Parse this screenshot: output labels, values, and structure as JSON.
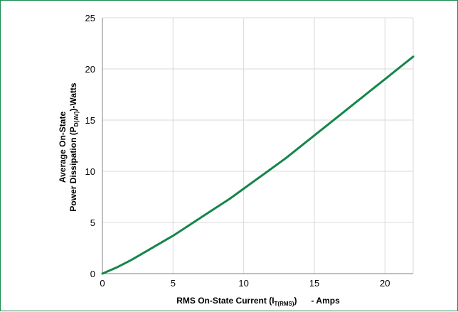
{
  "chart_data": {
    "type": "line",
    "title": "",
    "xlabel": {
      "main": "RMS On-State Current (I",
      "subscript": "T(RMS)",
      "suffix": ")      - Amps"
    },
    "ylabel": {
      "line1": "Average On-State",
      "line2_main": "Power Dissipation (P",
      "line2_subscript": "D(AV)",
      "line2_suffix": ")-Watts"
    },
    "xlim": [
      0,
      22
    ],
    "ylim": [
      0,
      25
    ],
    "xticks": [
      0,
      5,
      10,
      15,
      20
    ],
    "yticks": [
      0,
      5,
      10,
      15,
      20,
      25
    ],
    "grid": true,
    "series": [
      {
        "color": "#14864a",
        "x": [
          0,
          1,
          2,
          3,
          4,
          5,
          6,
          7,
          8,
          9,
          10,
          11,
          12,
          13,
          14,
          15,
          16,
          17,
          18,
          19,
          20,
          21,
          22
        ],
        "y": [
          0,
          0.6,
          1.3,
          2.1,
          2.9,
          3.7,
          4.6,
          5.5,
          6.4,
          7.3,
          8.3,
          9.3,
          10.3,
          11.3,
          12.4,
          13.5,
          14.6,
          15.7,
          16.8,
          17.9,
          19.0,
          20.1,
          21.2
        ]
      }
    ],
    "colors": {
      "frame": "#1a8a4f",
      "grid": "#d9d9d9",
      "axis": "#808080"
    }
  }
}
